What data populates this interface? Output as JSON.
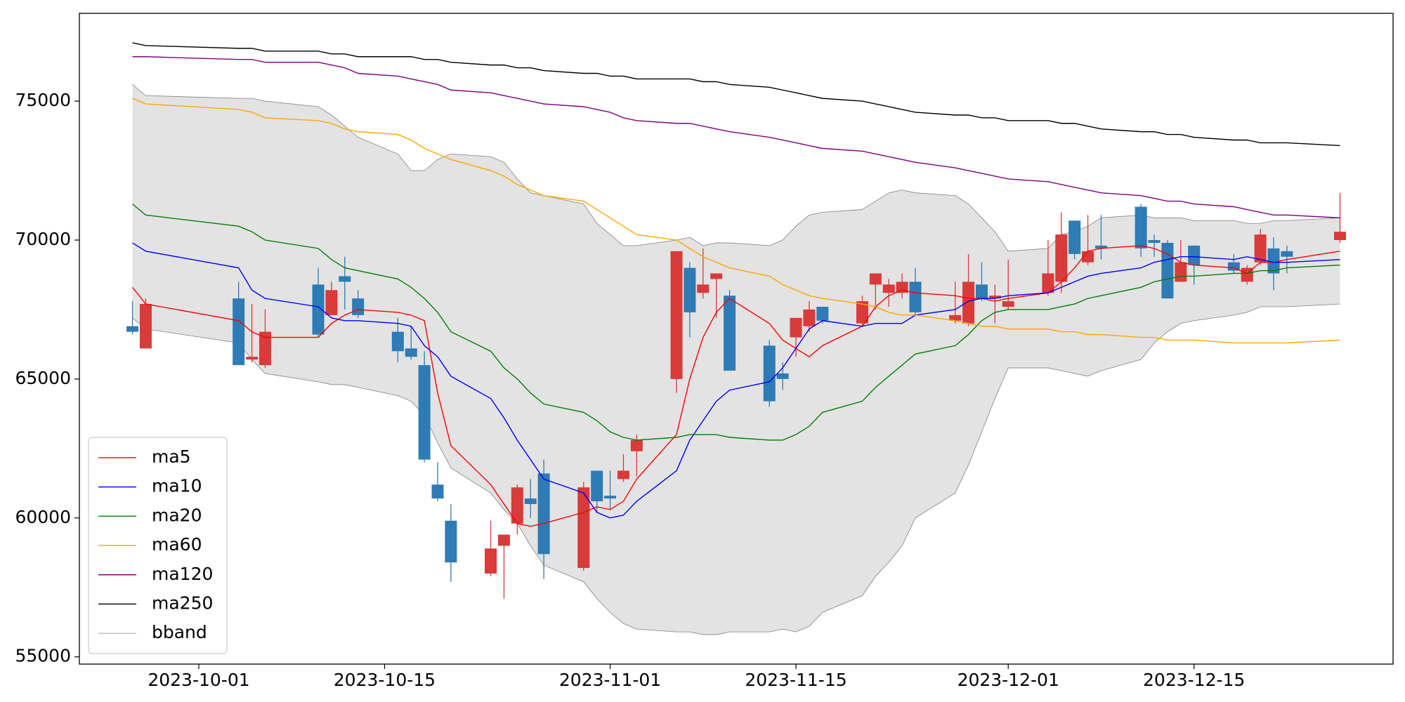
{
  "chart_data": {
    "type": "candlestick",
    "x": [
      "2023-09-26",
      "2023-09-27",
      "2023-10-04",
      "2023-10-05",
      "2023-10-06",
      "2023-10-10",
      "2023-10-11",
      "2023-10-12",
      "2023-10-13",
      "2023-10-16",
      "2023-10-17",
      "2023-10-18",
      "2023-10-19",
      "2023-10-20",
      "2023-10-23",
      "2023-10-24",
      "2023-10-25",
      "2023-10-26",
      "2023-10-27",
      "2023-10-30",
      "2023-10-31",
      "2023-11-01",
      "2023-11-02",
      "2023-11-03",
      "2023-11-06",
      "2023-11-07",
      "2023-11-08",
      "2023-11-09",
      "2023-11-10",
      "2023-11-13",
      "2023-11-14",
      "2023-11-15",
      "2023-11-16",
      "2023-11-17",
      "2023-11-20",
      "2023-11-21",
      "2023-11-22",
      "2023-11-23",
      "2023-11-24",
      "2023-11-27",
      "2023-11-28",
      "2023-11-29",
      "2023-11-30",
      "2023-12-01",
      "2023-12-04",
      "2023-12-05",
      "2023-12-06",
      "2023-12-07",
      "2023-12-08",
      "2023-12-11",
      "2023-12-12",
      "2023-12-13",
      "2023-12-14",
      "2023-12-15",
      "2023-12-18",
      "2023-12-19",
      "2023-12-20",
      "2023-12-21",
      "2023-12-22",
      "2023-12-26"
    ],
    "open": [
      66900,
      66100,
      67900,
      65700,
      65500,
      68400,
      67300,
      68700,
      67900,
      66700,
      66100,
      65500,
      61200,
      59900,
      58000,
      59000,
      59800,
      60700,
      61600,
      58200,
      61700,
      60800,
      61400,
      62400,
      65000,
      69000,
      68100,
      68600,
      68000,
      66200,
      65200,
      66500,
      66900,
      67600,
      67000,
      68400,
      68100,
      68100,
      68500,
      67100,
      67000,
      68400,
      67900,
      67600,
      68100,
      68500,
      70700,
      69200,
      69800,
      71200,
      70000,
      69900,
      68500,
      69800,
      69200,
      68500,
      69200,
      69700,
      69600,
      70000
    ],
    "high": [
      67800,
      67900,
      68500,
      67700,
      67500,
      69000,
      68500,
      69400,
      68200,
      67200,
      66900,
      66000,
      62000,
      60500,
      59900,
      59400,
      61200,
      61400,
      62100,
      61300,
      61700,
      61700,
      62300,
      63000,
      69600,
      69200,
      69700,
      68800,
      68200,
      66400,
      65600,
      67200,
      67800,
      67600,
      68000,
      68800,
      68600,
      68800,
      69000,
      68500,
      69500,
      69200,
      68400,
      69300,
      70000,
      71000,
      70700,
      70900,
      70900,
      71300,
      70200,
      70000,
      70000,
      69800,
      69500,
      69100,
      70400,
      70100,
      69800,
      71700
    ],
    "low": [
      66600,
      66100,
      65500,
      65600,
      65400,
      66500,
      67300,
      67500,
      67200,
      65600,
      65700,
      62000,
      60600,
      57700,
      57900,
      57100,
      59400,
      60000,
      57800,
      58100,
      60200,
      60300,
      61300,
      61500,
      64500,
      66500,
      67900,
      67200,
      65300,
      64000,
      64600,
      65800,
      66700,
      67000,
      66900,
      67500,
      67600,
      67900,
      67300,
      67000,
      66900,
      67800,
      67000,
      67500,
      68000,
      68100,
      69300,
      69100,
      69300,
      69400,
      69400,
      67900,
      68500,
      68400,
      68800,
      68400,
      69100,
      68200,
      68800,
      69900
    ],
    "close": [
      66700,
      67700,
      65500,
      65800,
      66700,
      66600,
      68200,
      68500,
      67300,
      66000,
      65800,
      62100,
      60700,
      58400,
      58900,
      59400,
      61100,
      60500,
      58700,
      61100,
      60600,
      60700,
      61700,
      62800,
      69600,
      67400,
      68400,
      68800,
      65300,
      64200,
      65000,
      67200,
      67500,
      67100,
      67800,
      68800,
      68400,
      68500,
      67400,
      67300,
      68500,
      67900,
      68000,
      67800,
      68800,
      70200,
      69500,
      69600,
      69700,
      69700,
      69900,
      67900,
      69200,
      69100,
      68900,
      69000,
      70200,
      68800,
      69400,
      70300
    ],
    "up_color": "#d93a3a",
    "down_color": "#2e7bb5",
    "series": [
      {
        "name": "ma5",
        "color": "red",
        "values": [
          68300,
          67700,
          67100,
          66700,
          66500,
          66500,
          67000,
          67300,
          67500,
          67400,
          67300,
          67100,
          64500,
          62600,
          61200,
          60500,
          59800,
          59700,
          59800,
          60200,
          60400,
          60300,
          60600,
          61400,
          63000,
          65000,
          66500,
          67400,
          67900,
          67000,
          66400,
          66100,
          65800,
          66200,
          66900,
          67600,
          68000,
          68200,
          68100,
          68000,
          67900,
          67900,
          67800,
          67900,
          68100,
          68500,
          69000,
          69600,
          69700,
          69800,
          69700,
          69500,
          69200,
          69100,
          69000,
          68800,
          69200,
          69200,
          69300,
          69600
        ]
      },
      {
        "name": "ma10",
        "color": "blue",
        "values": [
          69900,
          69600,
          69000,
          68200,
          67900,
          67600,
          67200,
          67100,
          67100,
          67000,
          66900,
          66200,
          65800,
          65100,
          64300,
          63600,
          62800,
          62100,
          61400,
          60900,
          60200,
          60000,
          60100,
          60600,
          61700,
          62800,
          63500,
          64200,
          64600,
          64900,
          65400,
          66100,
          66800,
          67100,
          66900,
          67000,
          67000,
          67000,
          67300,
          67500,
          67800,
          67900,
          67900,
          68000,
          68100,
          68300,
          68500,
          68700,
          68800,
          69000,
          69200,
          69300,
          69400,
          69400,
          69300,
          69400,
          69300,
          69200,
          69200,
          69300
        ]
      },
      {
        "name": "ma20",
        "color": "green",
        "values": [
          71300,
          70900,
          70500,
          70300,
          70000,
          69700,
          69300,
          69000,
          68900,
          68600,
          68300,
          67900,
          67400,
          66700,
          66000,
          65400,
          65000,
          64500,
          64100,
          63800,
          63500,
          63100,
          62900,
          62800,
          62900,
          63000,
          63000,
          63000,
          62900,
          62800,
          62800,
          63000,
          63300,
          63800,
          64200,
          64700,
          65100,
          65500,
          65900,
          66200,
          66600,
          67100,
          67400,
          67500,
          67500,
          67600,
          67700,
          67900,
          68000,
          68300,
          68500,
          68600,
          68700,
          68700,
          68800,
          68800,
          68900,
          68900,
          69000,
          69100
        ]
      },
      {
        "name": "ma60",
        "color": "orange",
        "values": [
          75100,
          74900,
          74700,
          74600,
          74400,
          74300,
          74200,
          74000,
          73900,
          73800,
          73600,
          73300,
          73100,
          72900,
          72500,
          72300,
          72000,
          71800,
          71600,
          71400,
          71100,
          70800,
          70500,
          70200,
          70000,
          69700,
          69400,
          69200,
          69000,
          68700,
          68400,
          68200,
          68000,
          67900,
          67700,
          67600,
          67400,
          67300,
          67300,
          67100,
          67000,
          66900,
          66900,
          66800,
          66800,
          66700,
          66700,
          66600,
          66600,
          66500,
          66500,
          66400,
          66400,
          66400,
          66300,
          66300,
          66300,
          66300,
          66300,
          66400
        ]
      },
      {
        "name": "ma120",
        "color": "purple",
        "values": [
          76600,
          76600,
          76500,
          76500,
          76400,
          76400,
          76300,
          76200,
          76000,
          75900,
          75800,
          75700,
          75600,
          75400,
          75300,
          75200,
          75100,
          75000,
          74900,
          74800,
          74700,
          74600,
          74400,
          74300,
          74200,
          74200,
          74100,
          74000,
          73900,
          73700,
          73600,
          73500,
          73400,
          73300,
          73200,
          73100,
          73000,
          72900,
          72800,
          72600,
          72500,
          72400,
          72300,
          72200,
          72100,
          72000,
          71900,
          71800,
          71700,
          71600,
          71500,
          71400,
          71400,
          71300,
          71200,
          71100,
          71000,
          70900,
          70900,
          70800
        ]
      },
      {
        "name": "ma250",
        "color": "black",
        "values": [
          77100,
          77000,
          76900,
          76900,
          76800,
          76800,
          76700,
          76700,
          76600,
          76600,
          76600,
          76500,
          76500,
          76400,
          76300,
          76300,
          76200,
          76200,
          76100,
          76000,
          76000,
          75900,
          75900,
          75800,
          75800,
          75800,
          75700,
          75700,
          75600,
          75500,
          75400,
          75300,
          75200,
          75100,
          75000,
          74900,
          74800,
          74700,
          74600,
          74500,
          74500,
          74400,
          74400,
          74300,
          74300,
          74200,
          74200,
          74100,
          74000,
          73900,
          73900,
          73800,
          73800,
          73700,
          73600,
          73600,
          73500,
          73500,
          73500,
          73400
        ]
      },
      {
        "name": "bband",
        "color": "gray",
        "fill": "#e3e3e3",
        "upper": [
          75600,
          75200,
          75100,
          75100,
          75000,
          74800,
          74500,
          74100,
          73700,
          73100,
          72500,
          72500,
          72900,
          73100,
          73000,
          72800,
          72200,
          71700,
          71600,
          71300,
          70600,
          70200,
          69800,
          69800,
          70000,
          70100,
          69800,
          69900,
          69900,
          69800,
          70000,
          70500,
          70900,
          71000,
          71100,
          71400,
          71700,
          71800,
          71700,
          71600,
          71300,
          70800,
          70300,
          69600,
          69700,
          70200,
          70300,
          70500,
          70800,
          70900,
          70800,
          70800,
          70800,
          70700,
          70700,
          70600,
          70600,
          70700,
          70700,
          70800
        ],
        "lower": [
          67200,
          66800,
          66300,
          65700,
          65200,
          64900,
          64800,
          64800,
          64700,
          64400,
          64200,
          63700,
          62700,
          61800,
          60900,
          60300,
          59800,
          59000,
          58300,
          57700,
          57100,
          56600,
          56200,
          56000,
          55900,
          55900,
          55800,
          55800,
          55900,
          55900,
          56000,
          55900,
          56100,
          56600,
          57200,
          57900,
          58400,
          59000,
          60000,
          60900,
          61900,
          63100,
          64300,
          65400,
          65400,
          65300,
          65200,
          65100,
          65300,
          65700,
          66300,
          66700,
          67000,
          67100,
          67300,
          67400,
          67600,
          67600,
          67600,
          67700
        ]
      }
    ],
    "xlim": [
      "2023-09-22",
      "2023-12-30"
    ],
    "xticks": [
      "2023-10-01",
      "2023-10-15",
      "2023-11-01",
      "2023-11-15",
      "2023-12-01",
      "2023-12-15"
    ],
    "ylim": [
      54740,
      78160
    ],
    "yticks": [
      55000,
      60000,
      65000,
      70000,
      75000
    ],
    "legend": "lower left"
  }
}
